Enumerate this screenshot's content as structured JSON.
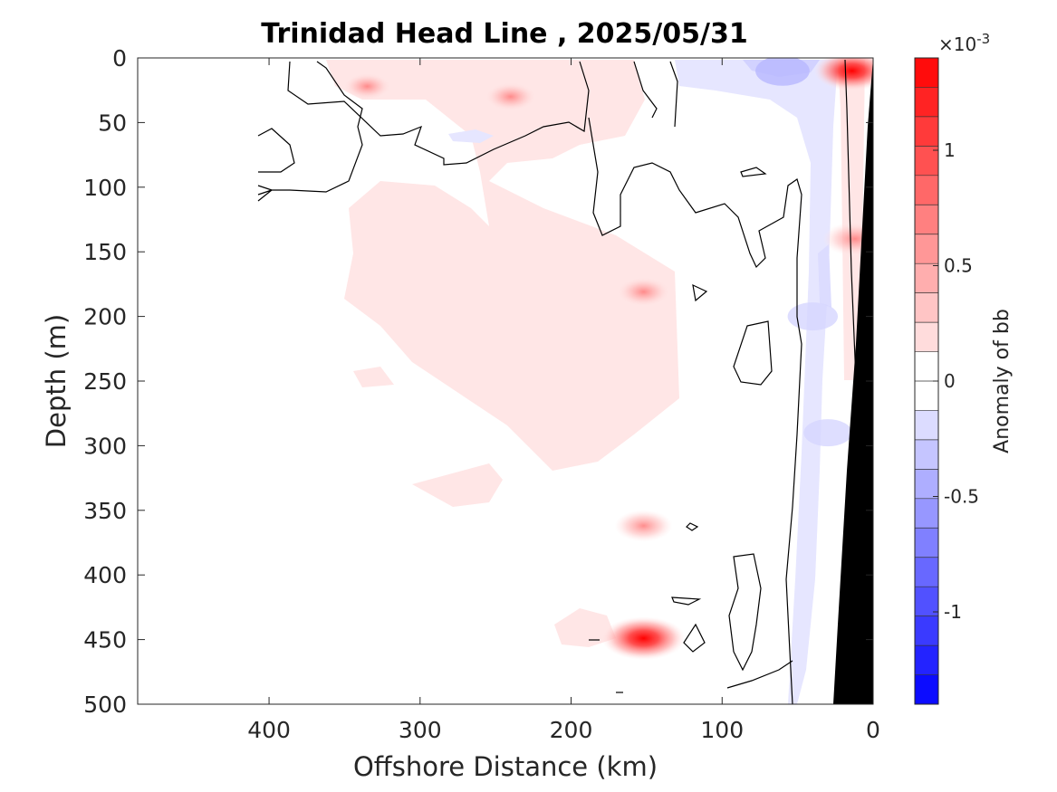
{
  "chart_data": {
    "type": "heatmap",
    "title": "Trinidad Head Line , 2025/05/31",
    "xlabel": "Offshore Distance (km)",
    "ylabel": "Depth (m)",
    "xlim": [
      487,
      0
    ],
    "ylim": [
      0,
      500
    ],
    "x_reversed": true,
    "y_reversed": true,
    "x_ticks": [
      "400",
      "300",
      "200",
      "100",
      "0"
    ],
    "x_tick_values": [
      400,
      300,
      200,
      100,
      0
    ],
    "y_ticks": [
      "0",
      "50",
      "100",
      "150",
      "200",
      "250",
      "300",
      "350",
      "400",
      "450",
      "500"
    ],
    "y_tick_values": [
      0,
      50,
      100,
      150,
      200,
      250,
      300,
      350,
      400,
      450,
      500
    ],
    "colorbar": {
      "label": "Anomaly of bb",
      "exponent_base": "×10",
      "exponent_power": "-3",
      "range": [
        -1.4,
        1.4
      ],
      "tick_labels": [
        "1",
        "0.5",
        "0",
        "-0.5",
        "-1"
      ],
      "tick_values": [
        1,
        0.5,
        0,
        -0.5,
        -1
      ],
      "levels": 22,
      "colors": {
        "positive": "#ff0000",
        "negative": "#0000ff",
        "neutral": "#ffffff"
      }
    },
    "anomaly_spots": [
      {
        "x": 152,
        "y": 449,
        "value": 1.2
      },
      {
        "x": 152,
        "y": 362,
        "value": 0.55
      },
      {
        "x": 152,
        "y": 181,
        "value": 0.45
      },
      {
        "x": 240,
        "y": 30,
        "value": 0.4
      },
      {
        "x": 335,
        "y": 22,
        "value": 0.3
      },
      {
        "x": 14,
        "y": 10,
        "value": 1.0
      },
      {
        "x": 12,
        "y": 140,
        "value": 0.7
      },
      {
        "x": 60,
        "y": 10,
        "value": -0.45
      },
      {
        "x": 40,
        "y": 200,
        "value": -0.35
      },
      {
        "x": 30,
        "y": 290,
        "value": -0.3
      }
    ],
    "bathymetry_color": "#000000"
  }
}
